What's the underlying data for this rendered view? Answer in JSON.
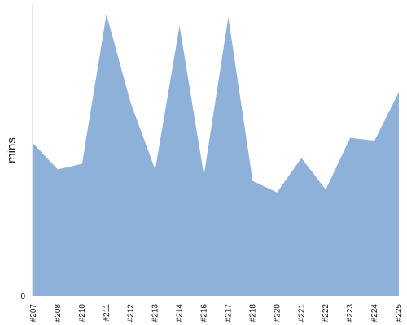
{
  "chart_data": {
    "type": "area",
    "title": "",
    "xlabel": "",
    "ylabel": "mins",
    "categories": [
      "#207",
      "#208",
      "#210",
      "#211",
      "#212",
      "#213",
      "#214",
      "#216",
      "#217",
      "#218",
      "#220",
      "#221",
      "#222",
      "#223",
      "#224",
      "#225"
    ],
    "series": [
      {
        "values": [
          53,
          44,
          46,
          98,
          67,
          44,
          94,
          42,
          97,
          40,
          36,
          48,
          37,
          55,
          54,
          71
        ]
      }
    ],
    "y_tick_labels": [
      "0"
    ],
    "ylim": [
      0,
      103
    ],
    "grid": false,
    "legend": "none",
    "colors": {
      "area_fill": "#8eb1da",
      "axis": "#cccccc"
    }
  }
}
